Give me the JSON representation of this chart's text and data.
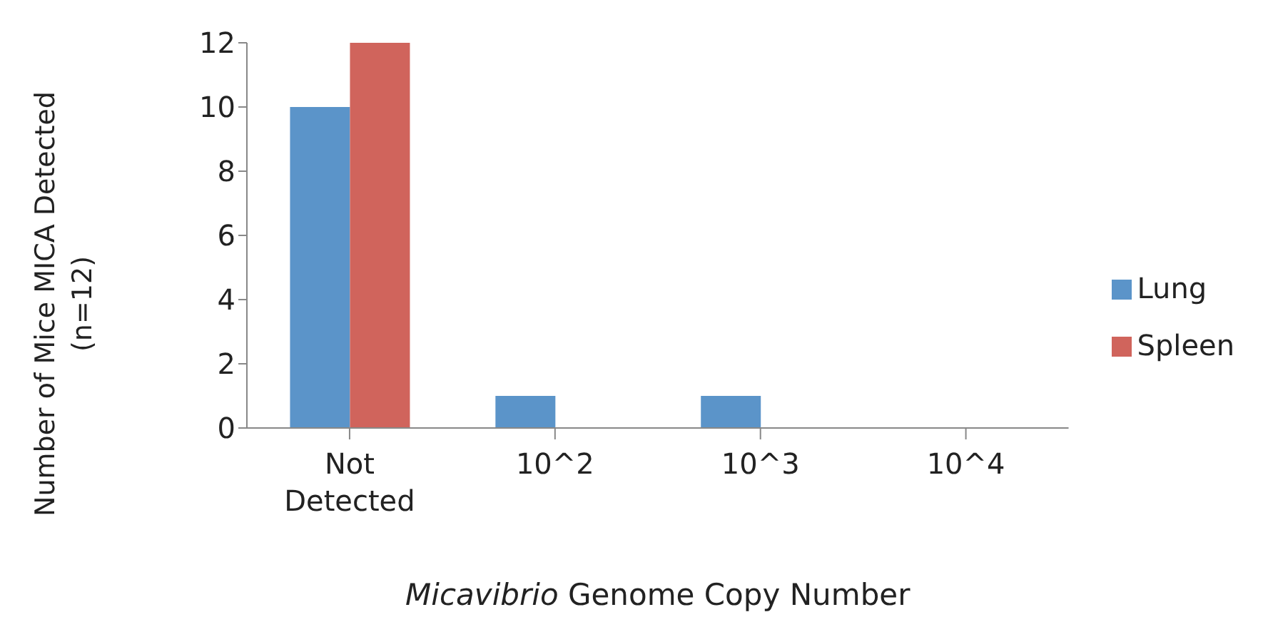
{
  "chart_data": {
    "type": "bar",
    "xlabel": "Micavibrio Genome Copy Number",
    "ylabel": "Number of Mice MICA Detected\n(n=12)",
    "categories": [
      "Not Detected",
      "10^2",
      "10^3",
      "10^4"
    ],
    "series": [
      {
        "name": "Lung",
        "color": "#5b94c9",
        "values": [
          10,
          1,
          1,
          0
        ]
      },
      {
        "name": "Spleen",
        "color": "#d0645c",
        "values": [
          12,
          0,
          0,
          0
        ]
      }
    ],
    "ylim": [
      0,
      12
    ],
    "yticks": [
      0,
      2,
      4,
      6,
      8,
      10,
      12
    ],
    "grid": false,
    "legend": "right"
  }
}
